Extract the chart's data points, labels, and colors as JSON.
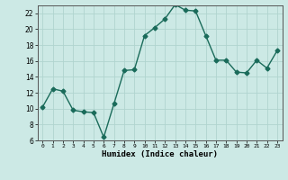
{
  "x": [
    0,
    1,
    2,
    3,
    4,
    5,
    6,
    7,
    8,
    9,
    10,
    11,
    12,
    13,
    14,
    15,
    16,
    17,
    18,
    19,
    20,
    21,
    22,
    23
  ],
  "y": [
    10.2,
    12.5,
    12.2,
    9.8,
    9.6,
    9.5,
    6.4,
    10.6,
    14.8,
    14.9,
    19.2,
    20.2,
    21.3,
    23.1,
    22.4,
    22.3,
    19.2,
    16.1,
    16.1,
    14.6,
    14.5,
    16.1,
    15.1,
    17.3
  ],
  "line_color": "#1a6b5a",
  "marker": "D",
  "markersize": 2.5,
  "bg_color": "#cce9e5",
  "grid_major_color": "#b0d4cf",
  "grid_minor_color": "#c2deda",
  "xlabel": "Humidex (Indice chaleur)",
  "xlim": [
    -0.5,
    23.5
  ],
  "ylim": [
    6,
    23
  ],
  "yticks": [
    6,
    8,
    10,
    12,
    14,
    16,
    18,
    20,
    22
  ],
  "xticks": [
    0,
    1,
    2,
    3,
    4,
    5,
    6,
    7,
    8,
    9,
    10,
    11,
    12,
    13,
    14,
    15,
    16,
    17,
    18,
    19,
    20,
    21,
    22,
    23
  ]
}
